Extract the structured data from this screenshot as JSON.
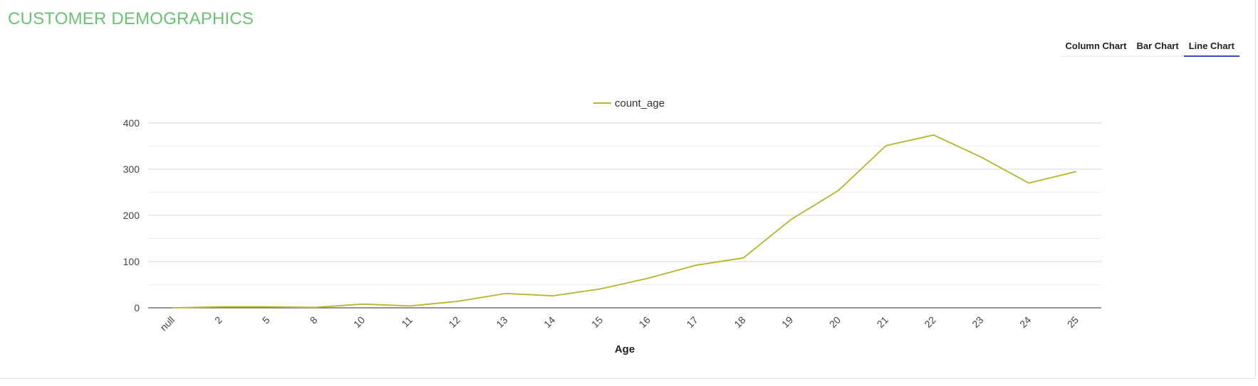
{
  "header": {
    "title": "CUSTOMER DEMOGRAPHICS"
  },
  "chart_tabs": {
    "items": [
      {
        "label": "Column Chart",
        "active": false
      },
      {
        "label": "Bar Chart",
        "active": false
      },
      {
        "label": "Line Chart",
        "active": true
      }
    ]
  },
  "colors": {
    "title": "#6cc173",
    "series": "#b5b52a",
    "active_tab_underline": "#3b49c8"
  },
  "chart_data": {
    "type": "line",
    "xlabel": "Age",
    "ylabel": "",
    "ylim": [
      0,
      400
    ],
    "yticks": [
      0,
      100,
      200,
      300,
      400
    ],
    "grid": true,
    "legend_position": "top-center",
    "categories": [
      "null",
      "2",
      "5",
      "8",
      "10",
      "11",
      "12",
      "13",
      "14",
      "15",
      "16",
      "17",
      "18",
      "19",
      "20",
      "21",
      "22",
      "23",
      "24",
      "25"
    ],
    "series": [
      {
        "name": "count_age",
        "values": [
          0,
          2,
          2,
          1,
          8,
          4,
          14,
          31,
          26,
          41,
          64,
          92,
          108,
          191,
          254,
          351,
          374,
          326,
          270,
          295
        ]
      }
    ]
  }
}
